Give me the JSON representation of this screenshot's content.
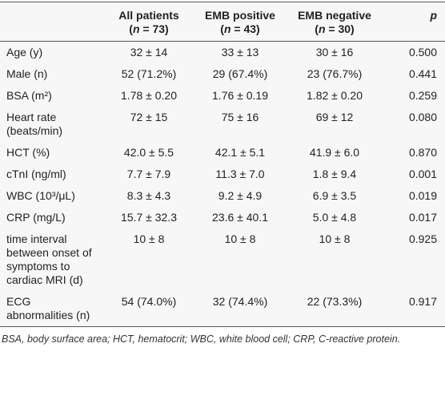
{
  "table": {
    "columns": [
      {
        "label": "All patients",
        "count": [
          "(",
          "n",
          " = 73)"
        ]
      },
      {
        "label": "EMB positive",
        "count": [
          "(",
          "n",
          " = 43)"
        ]
      },
      {
        "label": "EMB negative",
        "count": [
          "(",
          "n",
          " = 30)"
        ]
      },
      {
        "label": "p"
      }
    ],
    "rows": [
      [
        "Age (y)",
        "32 ± 14",
        "33 ± 13",
        "30 ± 16",
        "0.500"
      ],
      [
        "Male (n)",
        "52 (71.2%)",
        "29 (67.4%)",
        "23 (76.7%)",
        "0.441"
      ],
      [
        "BSA (m²)",
        "1.78 ± 0.20",
        "1.76 ± 0.19",
        "1.82 ± 0.20",
        "0.259"
      ],
      [
        "Heart rate (beats/min)",
        "72 ± 15",
        "75 ± 16",
        "69 ± 12",
        "0.080"
      ],
      [
        "HCT (%)",
        "42.0 ± 5.5",
        "42.1 ± 5.1",
        "41.9 ± 6.0",
        "0.870"
      ],
      [
        "cTnI (ng/ml)",
        "7.7 ± 7.9",
        "11.3 ± 7.0",
        "1.8 ± 9.4",
        "0.001"
      ],
      [
        "WBC (10³/μL)",
        "8.3 ± 4.3",
        "9.2 ± 4.9",
        "6.9 ± 3.5",
        "0.019"
      ],
      [
        "CRP (mg/L)",
        "15.7 ± 32.3",
        "23.6 ± 40.1",
        "5.0 ± 4.8",
        "0.017"
      ],
      [
        "time interval between onset of symptoms to cardiac MRI (d)",
        "10 ± 8",
        "10 ± 8",
        "10 ± 8",
        "0.925"
      ],
      [
        "ECG abnormalities (n)",
        "54 (74.0%)",
        "32 (74.4%)",
        "22 (73.3%)",
        "0.917"
      ]
    ],
    "footnote": "BSA, body surface area; HCT, hematocrit; WBC, white blood cell; CRP, C-reactive protein."
  }
}
